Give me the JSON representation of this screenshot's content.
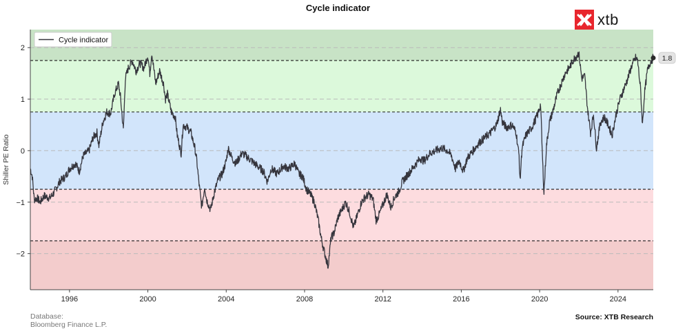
{
  "title": "Cycle indicator",
  "brand": {
    "name": "xtb",
    "color": "#e8262d"
  },
  "footer": {
    "database_label": "Database:",
    "database_value": "Bloomberg Finance L.P.",
    "source": "Source: XTB Research"
  },
  "chart_data": {
    "type": "line",
    "title": "Cycle indicator",
    "xlabel": "",
    "ylabel": "Shiller PE Ratio",
    "xlim": [
      1994.0,
      2025.8
    ],
    "ylim": [
      -2.7,
      2.35
    ],
    "grid": "horizontal dashed at y ticks",
    "legend": {
      "position": "top-left",
      "entries": [
        "Cycle indicator"
      ]
    },
    "x_ticks": [
      1996,
      2000,
      2004,
      2008,
      2012,
      2016,
      2020,
      2024
    ],
    "y_ticks": [
      2,
      1,
      0,
      -1,
      -2
    ],
    "y_tick_labels": [
      "2",
      "1",
      "0",
      "−1",
      "−2"
    ],
    "threshold_lines": [
      1.75,
      0.75,
      -0.75,
      -1.75
    ],
    "bands": [
      {
        "from": 1.75,
        "to": 2.35,
        "color": "#c8e3c6"
      },
      {
        "from": 0.75,
        "to": 1.75,
        "color": "#dcf9db"
      },
      {
        "from": -0.75,
        "to": 0.75,
        "color": "#d2e5fb"
      },
      {
        "from": -1.75,
        "to": -0.75,
        "color": "#fddcdf"
      },
      {
        "from": -2.7,
        "to": -1.75,
        "color": "#f3cccc"
      }
    ],
    "series": [
      {
        "name": "Cycle indicator",
        "color": "#35353d",
        "last_value_label": "1.8",
        "points": [
          [
            1994.0,
            -0.35
          ],
          [
            1994.1,
            -0.5
          ],
          [
            1994.2,
            -0.95
          ],
          [
            1994.35,
            -0.92
          ],
          [
            1994.5,
            -1.0
          ],
          [
            1994.7,
            -0.88
          ],
          [
            1995.0,
            -0.92
          ],
          [
            1995.2,
            -0.82
          ],
          [
            1995.5,
            -0.6
          ],
          [
            1995.8,
            -0.5
          ],
          [
            1996.0,
            -0.35
          ],
          [
            1996.3,
            -0.25
          ],
          [
            1996.5,
            -0.4
          ],
          [
            1996.7,
            -0.1
          ],
          [
            1997.0,
            0.0
          ],
          [
            1997.2,
            0.25
          ],
          [
            1997.4,
            0.35
          ],
          [
            1997.5,
            0.1
          ],
          [
            1997.7,
            0.55
          ],
          [
            1997.9,
            0.75
          ],
          [
            1998.1,
            0.72
          ],
          [
            1998.3,
            1.1
          ],
          [
            1998.5,
            1.3
          ],
          [
            1998.6,
            1.05
          ],
          [
            1998.75,
            0.4
          ],
          [
            1998.85,
            1.4
          ],
          [
            1999.0,
            1.6
          ],
          [
            1999.2,
            1.75
          ],
          [
            1999.4,
            1.55
          ],
          [
            1999.6,
            1.7
          ],
          [
            1999.8,
            1.6
          ],
          [
            2000.0,
            1.85
          ],
          [
            2000.1,
            1.5
          ],
          [
            2000.2,
            1.9
          ],
          [
            2000.4,
            1.3
          ],
          [
            2000.6,
            1.55
          ],
          [
            2000.8,
            1.3
          ],
          [
            2000.9,
            1.0
          ],
          [
            2001.0,
            1.1
          ],
          [
            2001.2,
            0.75
          ],
          [
            2001.4,
            0.65
          ],
          [
            2001.5,
            0.3
          ],
          [
            2001.7,
            -0.05
          ],
          [
            2001.8,
            0.5
          ],
          [
            2002.0,
            0.45
          ],
          [
            2002.2,
            0.35
          ],
          [
            2002.4,
            0.05
          ],
          [
            2002.5,
            -0.2
          ],
          [
            2002.6,
            -0.6
          ],
          [
            2002.75,
            -1.1
          ],
          [
            2002.9,
            -0.7
          ],
          [
            2003.0,
            -0.95
          ],
          [
            2003.2,
            -1.15
          ],
          [
            2003.4,
            -0.8
          ],
          [
            2003.6,
            -0.55
          ],
          [
            2003.8,
            -0.45
          ],
          [
            2004.0,
            -0.2
          ],
          [
            2004.1,
            0.05
          ],
          [
            2004.3,
            -0.15
          ],
          [
            2004.5,
            -0.25
          ],
          [
            2004.8,
            -0.05
          ],
          [
            2005.0,
            -0.1
          ],
          [
            2005.3,
            -0.2
          ],
          [
            2005.6,
            -0.3
          ],
          [
            2005.9,
            -0.4
          ],
          [
            2006.1,
            -0.6
          ],
          [
            2006.3,
            -0.35
          ],
          [
            2006.6,
            -0.45
          ],
          [
            2006.9,
            -0.3
          ],
          [
            2007.2,
            -0.35
          ],
          [
            2007.5,
            -0.25
          ],
          [
            2007.7,
            -0.45
          ],
          [
            2007.9,
            -0.5
          ],
          [
            2008.1,
            -0.75
          ],
          [
            2008.3,
            -0.85
          ],
          [
            2008.5,
            -1.0
          ],
          [
            2008.7,
            -1.35
          ],
          [
            2008.85,
            -1.7
          ],
          [
            2009.0,
            -1.95
          ],
          [
            2009.1,
            -2.1
          ],
          [
            2009.2,
            -2.25
          ],
          [
            2009.35,
            -1.7
          ],
          [
            2009.5,
            -1.6
          ],
          [
            2009.7,
            -1.3
          ],
          [
            2009.9,
            -1.15
          ],
          [
            2010.1,
            -1.0
          ],
          [
            2010.3,
            -1.2
          ],
          [
            2010.5,
            -1.5
          ],
          [
            2010.7,
            -1.25
          ],
          [
            2010.9,
            -1.0
          ],
          [
            2011.1,
            -0.9
          ],
          [
            2011.3,
            -0.85
          ],
          [
            2011.5,
            -0.95
          ],
          [
            2011.65,
            -1.35
          ],
          [
            2011.8,
            -1.25
          ],
          [
            2012.0,
            -1.05
          ],
          [
            2012.2,
            -0.85
          ],
          [
            2012.4,
            -1.1
          ],
          [
            2012.6,
            -0.9
          ],
          [
            2012.8,
            -0.8
          ],
          [
            2013.0,
            -0.6
          ],
          [
            2013.3,
            -0.45
          ],
          [
            2013.6,
            -0.3
          ],
          [
            2013.9,
            -0.15
          ],
          [
            2014.1,
            -0.2
          ],
          [
            2014.4,
            -0.05
          ],
          [
            2014.7,
            0.0
          ],
          [
            2015.0,
            0.05
          ],
          [
            2015.3,
            0.0
          ],
          [
            2015.5,
            -0.1
          ],
          [
            2015.7,
            -0.35
          ],
          [
            2015.9,
            -0.2
          ],
          [
            2016.1,
            -0.4
          ],
          [
            2016.3,
            -0.15
          ],
          [
            2016.6,
            0.0
          ],
          [
            2016.9,
            0.15
          ],
          [
            2017.2,
            0.25
          ],
          [
            2017.5,
            0.35
          ],
          [
            2017.8,
            0.5
          ],
          [
            2018.0,
            0.8
          ],
          [
            2018.1,
            0.55
          ],
          [
            2018.3,
            0.45
          ],
          [
            2018.6,
            0.5
          ],
          [
            2018.8,
            0.35
          ],
          [
            2018.95,
            -0.1
          ],
          [
            2019.0,
            -0.6
          ],
          [
            2019.1,
            0.05
          ],
          [
            2019.3,
            0.3
          ],
          [
            2019.6,
            0.45
          ],
          [
            2019.9,
            0.7
          ],
          [
            2020.05,
            0.9
          ],
          [
            2020.15,
            -0.2
          ],
          [
            2020.22,
            -0.82
          ],
          [
            2020.35,
            0.1
          ],
          [
            2020.5,
            0.55
          ],
          [
            2020.7,
            0.8
          ],
          [
            2020.9,
            1.1
          ],
          [
            2021.1,
            1.3
          ],
          [
            2021.3,
            1.5
          ],
          [
            2021.5,
            1.6
          ],
          [
            2021.7,
            1.75
          ],
          [
            2021.9,
            1.85
          ],
          [
            2022.0,
            1.9
          ],
          [
            2022.15,
            1.4
          ],
          [
            2022.3,
            1.45
          ],
          [
            2022.45,
            0.8
          ],
          [
            2022.6,
            0.35
          ],
          [
            2022.75,
            0.7
          ],
          [
            2022.9,
            0.05
          ],
          [
            2023.1,
            0.55
          ],
          [
            2023.3,
            0.65
          ],
          [
            2023.5,
            0.5
          ],
          [
            2023.7,
            0.3
          ],
          [
            2023.9,
            0.7
          ],
          [
            2024.1,
            1.0
          ],
          [
            2024.3,
            1.2
          ],
          [
            2024.5,
            1.4
          ],
          [
            2024.7,
            1.65
          ],
          [
            2024.9,
            1.8
          ],
          [
            2025.0,
            1.75
          ],
          [
            2025.15,
            1.2
          ],
          [
            2025.25,
            0.5
          ],
          [
            2025.35,
            1.1
          ],
          [
            2025.5,
            1.55
          ],
          [
            2025.65,
            1.72
          ],
          [
            2025.8,
            1.8
          ]
        ]
      }
    ]
  }
}
